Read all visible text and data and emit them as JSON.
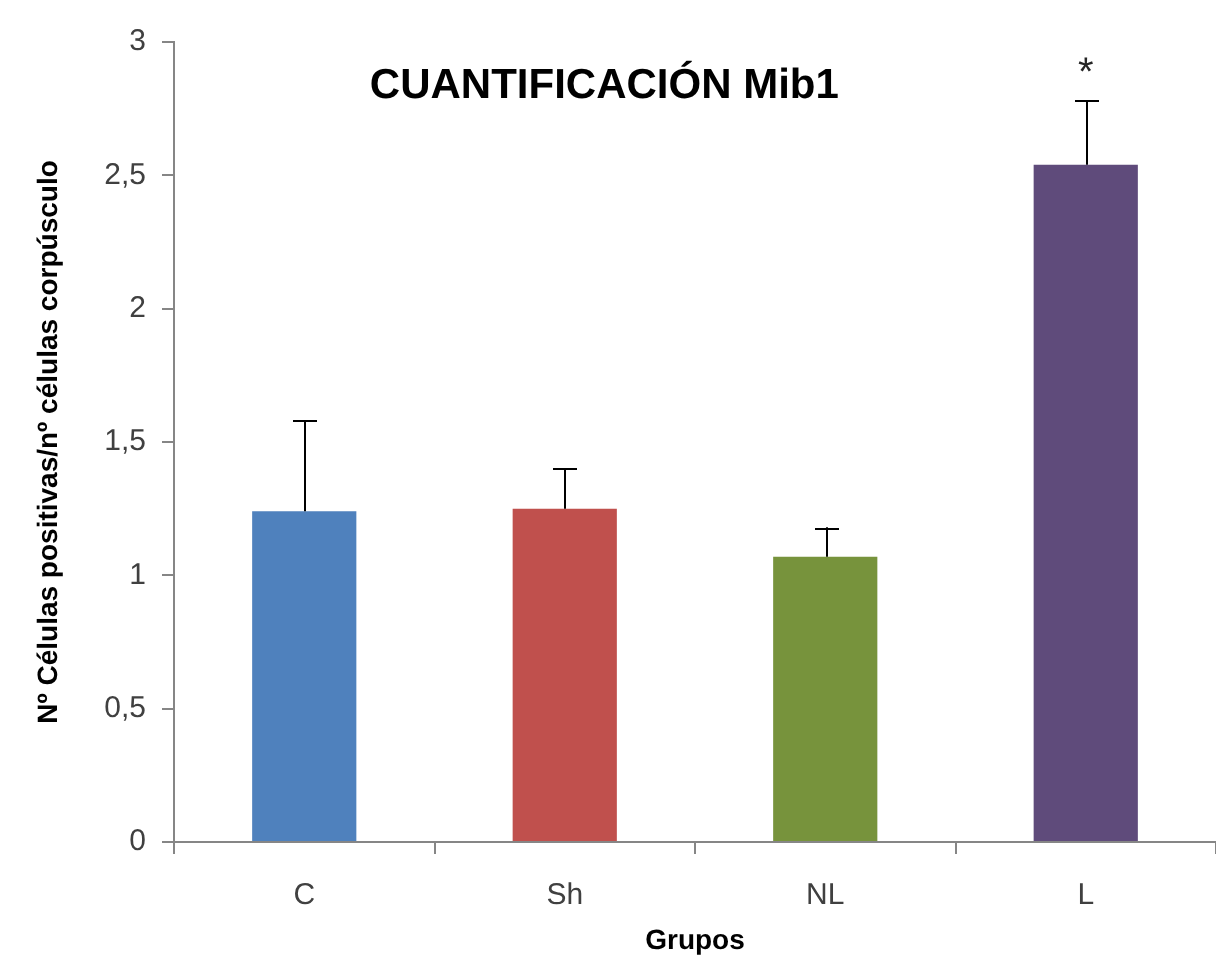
{
  "chart_data": {
    "type": "bar",
    "title": "CUANTIFICACIÓN Mib1",
    "xlabel": "Grupos",
    "ylabel": "Nº Células positivas/nº células corpúsculo",
    "categories": [
      "C",
      "Sh",
      "NL",
      "L"
    ],
    "values": [
      1.24,
      1.25,
      1.07,
      2.54
    ],
    "colors": [
      "#4f81bd",
      "#c0504d",
      "#77933c",
      "#5f4b7b"
    ],
    "errors": [
      [
        1.24,
        1.58
      ],
      [
        1.25,
        1.4
      ],
      [
        1.07,
        1.18
      ],
      [
        2.54,
        2.78
      ]
    ],
    "ylim": [
      0,
      3
    ],
    "yticks": [
      0,
      {
        "value": 0.5,
        "label": "0,5"
      },
      1,
      {
        "value": 1.5,
        "label": "1,5"
      },
      2,
      {
        "value": 2.5,
        "label": "2,5"
      },
      3
    ],
    "grid": false,
    "legend": false,
    "annotations": [
      {
        "text": "*",
        "x": "L",
        "y": 2.78
      }
    ]
  }
}
